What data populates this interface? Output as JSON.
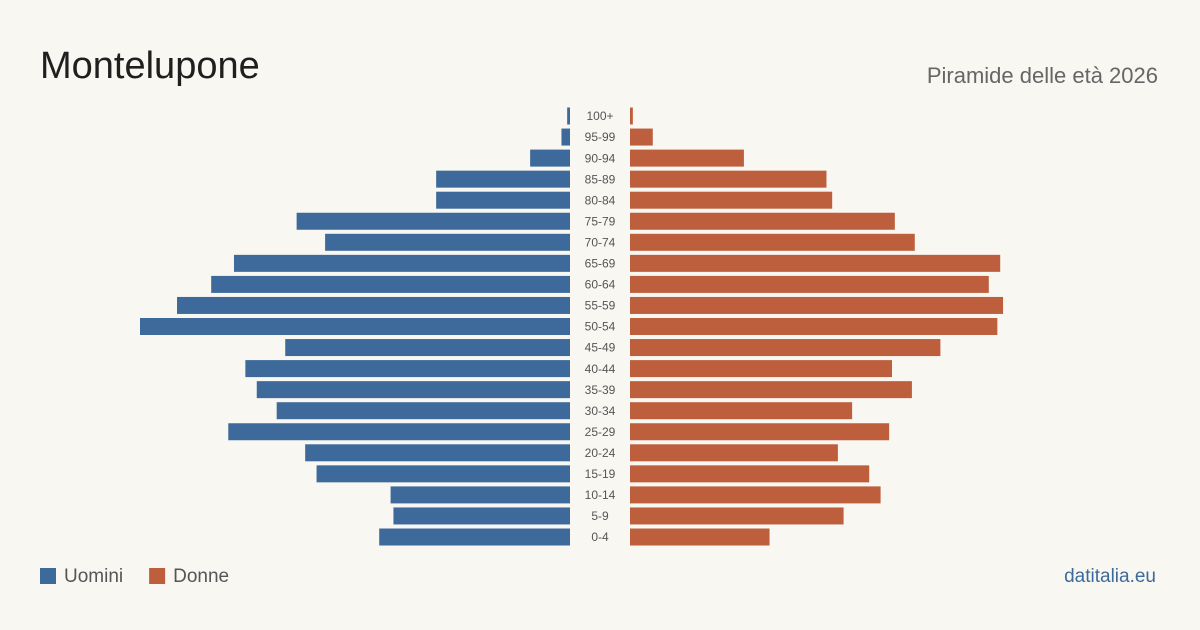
{
  "chart_data": {
    "type": "pyramid",
    "title": "Montelupone",
    "subtitle": "Piramide delle età 2026",
    "source": "datitalia.eu",
    "categories": [
      "100+",
      "95-99",
      "90-94",
      "85-89",
      "80-84",
      "75-79",
      "70-74",
      "65-69",
      "60-64",
      "55-59",
      "50-54",
      "45-49",
      "40-44",
      "35-39",
      "30-34",
      "25-29",
      "20-24",
      "15-19",
      "10-14",
      "5-9",
      "0-4"
    ],
    "series": [
      {
        "name": "Uomini",
        "color": "#3d6a9b",
        "values": [
          1,
          3,
          14,
          47,
          47,
          96,
          86,
          118,
          126,
          138,
          151,
          100,
          114,
          110,
          103,
          120,
          93,
          89,
          63,
          62,
          67
        ]
      },
      {
        "name": "Donne",
        "color": "#bd5f3d",
        "values": [
          1,
          8,
          40,
          69,
          71,
          93,
          100,
          130,
          126,
          131,
          129,
          109,
          92,
          99,
          78,
          91,
          73,
          84,
          88,
          75,
          49
        ]
      }
    ]
  }
}
